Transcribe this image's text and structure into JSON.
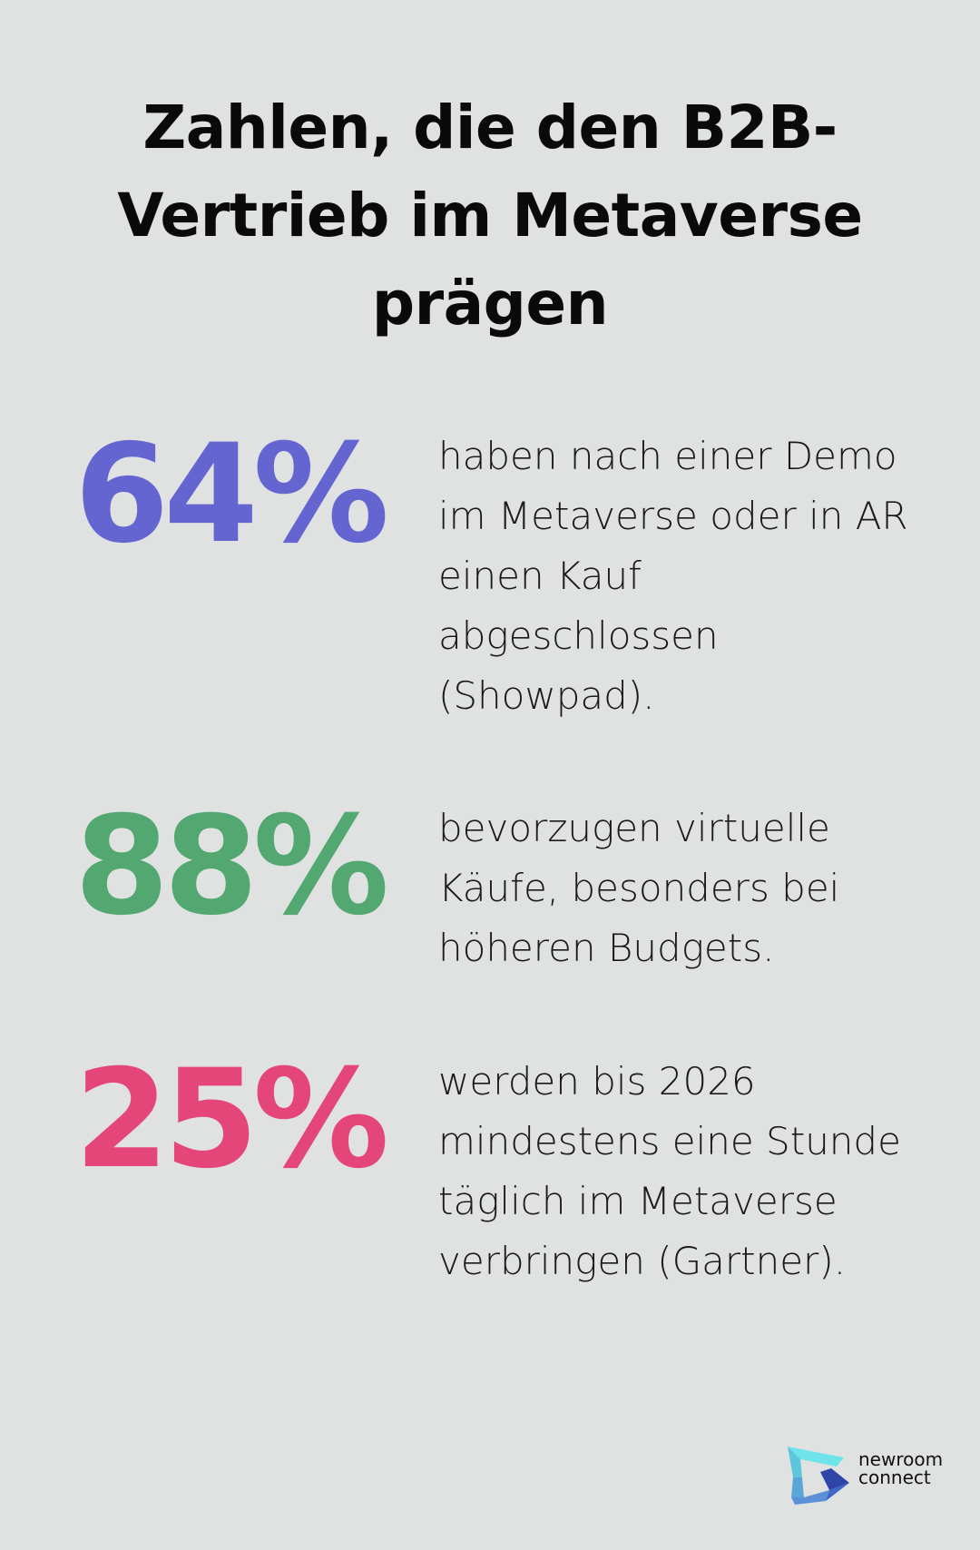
{
  "title": "Zahlen, die den B2B-Vertrieb im Metaverse prägen",
  "stats": [
    {
      "value": "64%",
      "color": "#6465d1",
      "text": "haben nach einer Demo im Metaverse oder in AR einen Kauf abgeschlossen (Showpad)."
    },
    {
      "value": "88%",
      "color": "#52a870",
      "text": "bevorzugen virtuelle Käufe, besonders bei höheren Budgets."
    },
    {
      "value": "25%",
      "color": "#e4467a",
      "text": "werden bis 2026 mindestens eine Stunde täglich im Metaverse verbringen (Gartner)."
    }
  ],
  "logo": {
    "line1": "newroom",
    "line2": "connect"
  }
}
